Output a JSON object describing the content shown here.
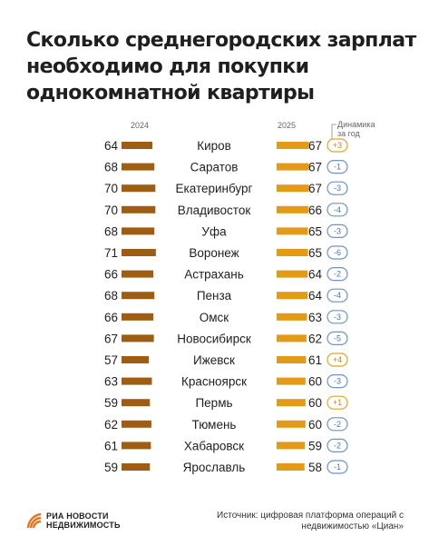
{
  "title": "Сколько среднегородских зарплат необходимо для покупки однокомнатной квартиры",
  "chart_data": {
    "type": "bar",
    "year_left": "2024",
    "year_right": "2025",
    "change_label": "Динамика за год",
    "categories": [
      "Киров",
      "Саратов",
      "Екатеринбург",
      "Владивосток",
      "Уфа",
      "Воронеж",
      "Астрахань",
      "Пенза",
      "Омск",
      "Новосибирск",
      "Ижевск",
      "Красноярск",
      "Пермь",
      "Тюмень",
      "Хабаровск",
      "Ярославль"
    ],
    "series": [
      {
        "name": "2024",
        "values": [
          64,
          68,
          70,
          70,
          68,
          71,
          66,
          68,
          66,
          67,
          57,
          63,
          59,
          62,
          61,
          59
        ]
      },
      {
        "name": "2025",
        "values": [
          67,
          67,
          67,
          66,
          65,
          65,
          64,
          64,
          63,
          62,
          61,
          60,
          60,
          60,
          59,
          58
        ]
      }
    ],
    "change": [
      "+3",
      "-1",
      "-3",
      "-4",
      "-3",
      "-6",
      "-2",
      "-4",
      "-3",
      "-5",
      "+4",
      "-3",
      "+1",
      "-2",
      "-2",
      "-1"
    ],
    "colors": {
      "bar2024": "#9e5d12",
      "bar2025": "#e39a16",
      "pill_up": "#e0a52c",
      "pill_down": "#6f95c4"
    }
  },
  "footer": {
    "logo_line1": "РИА НОВОСТИ",
    "logo_line2": "НЕДВИЖИМОСТЬ",
    "source": "Источник: цифровая платформа операций с недвижимостью «Циан»"
  }
}
